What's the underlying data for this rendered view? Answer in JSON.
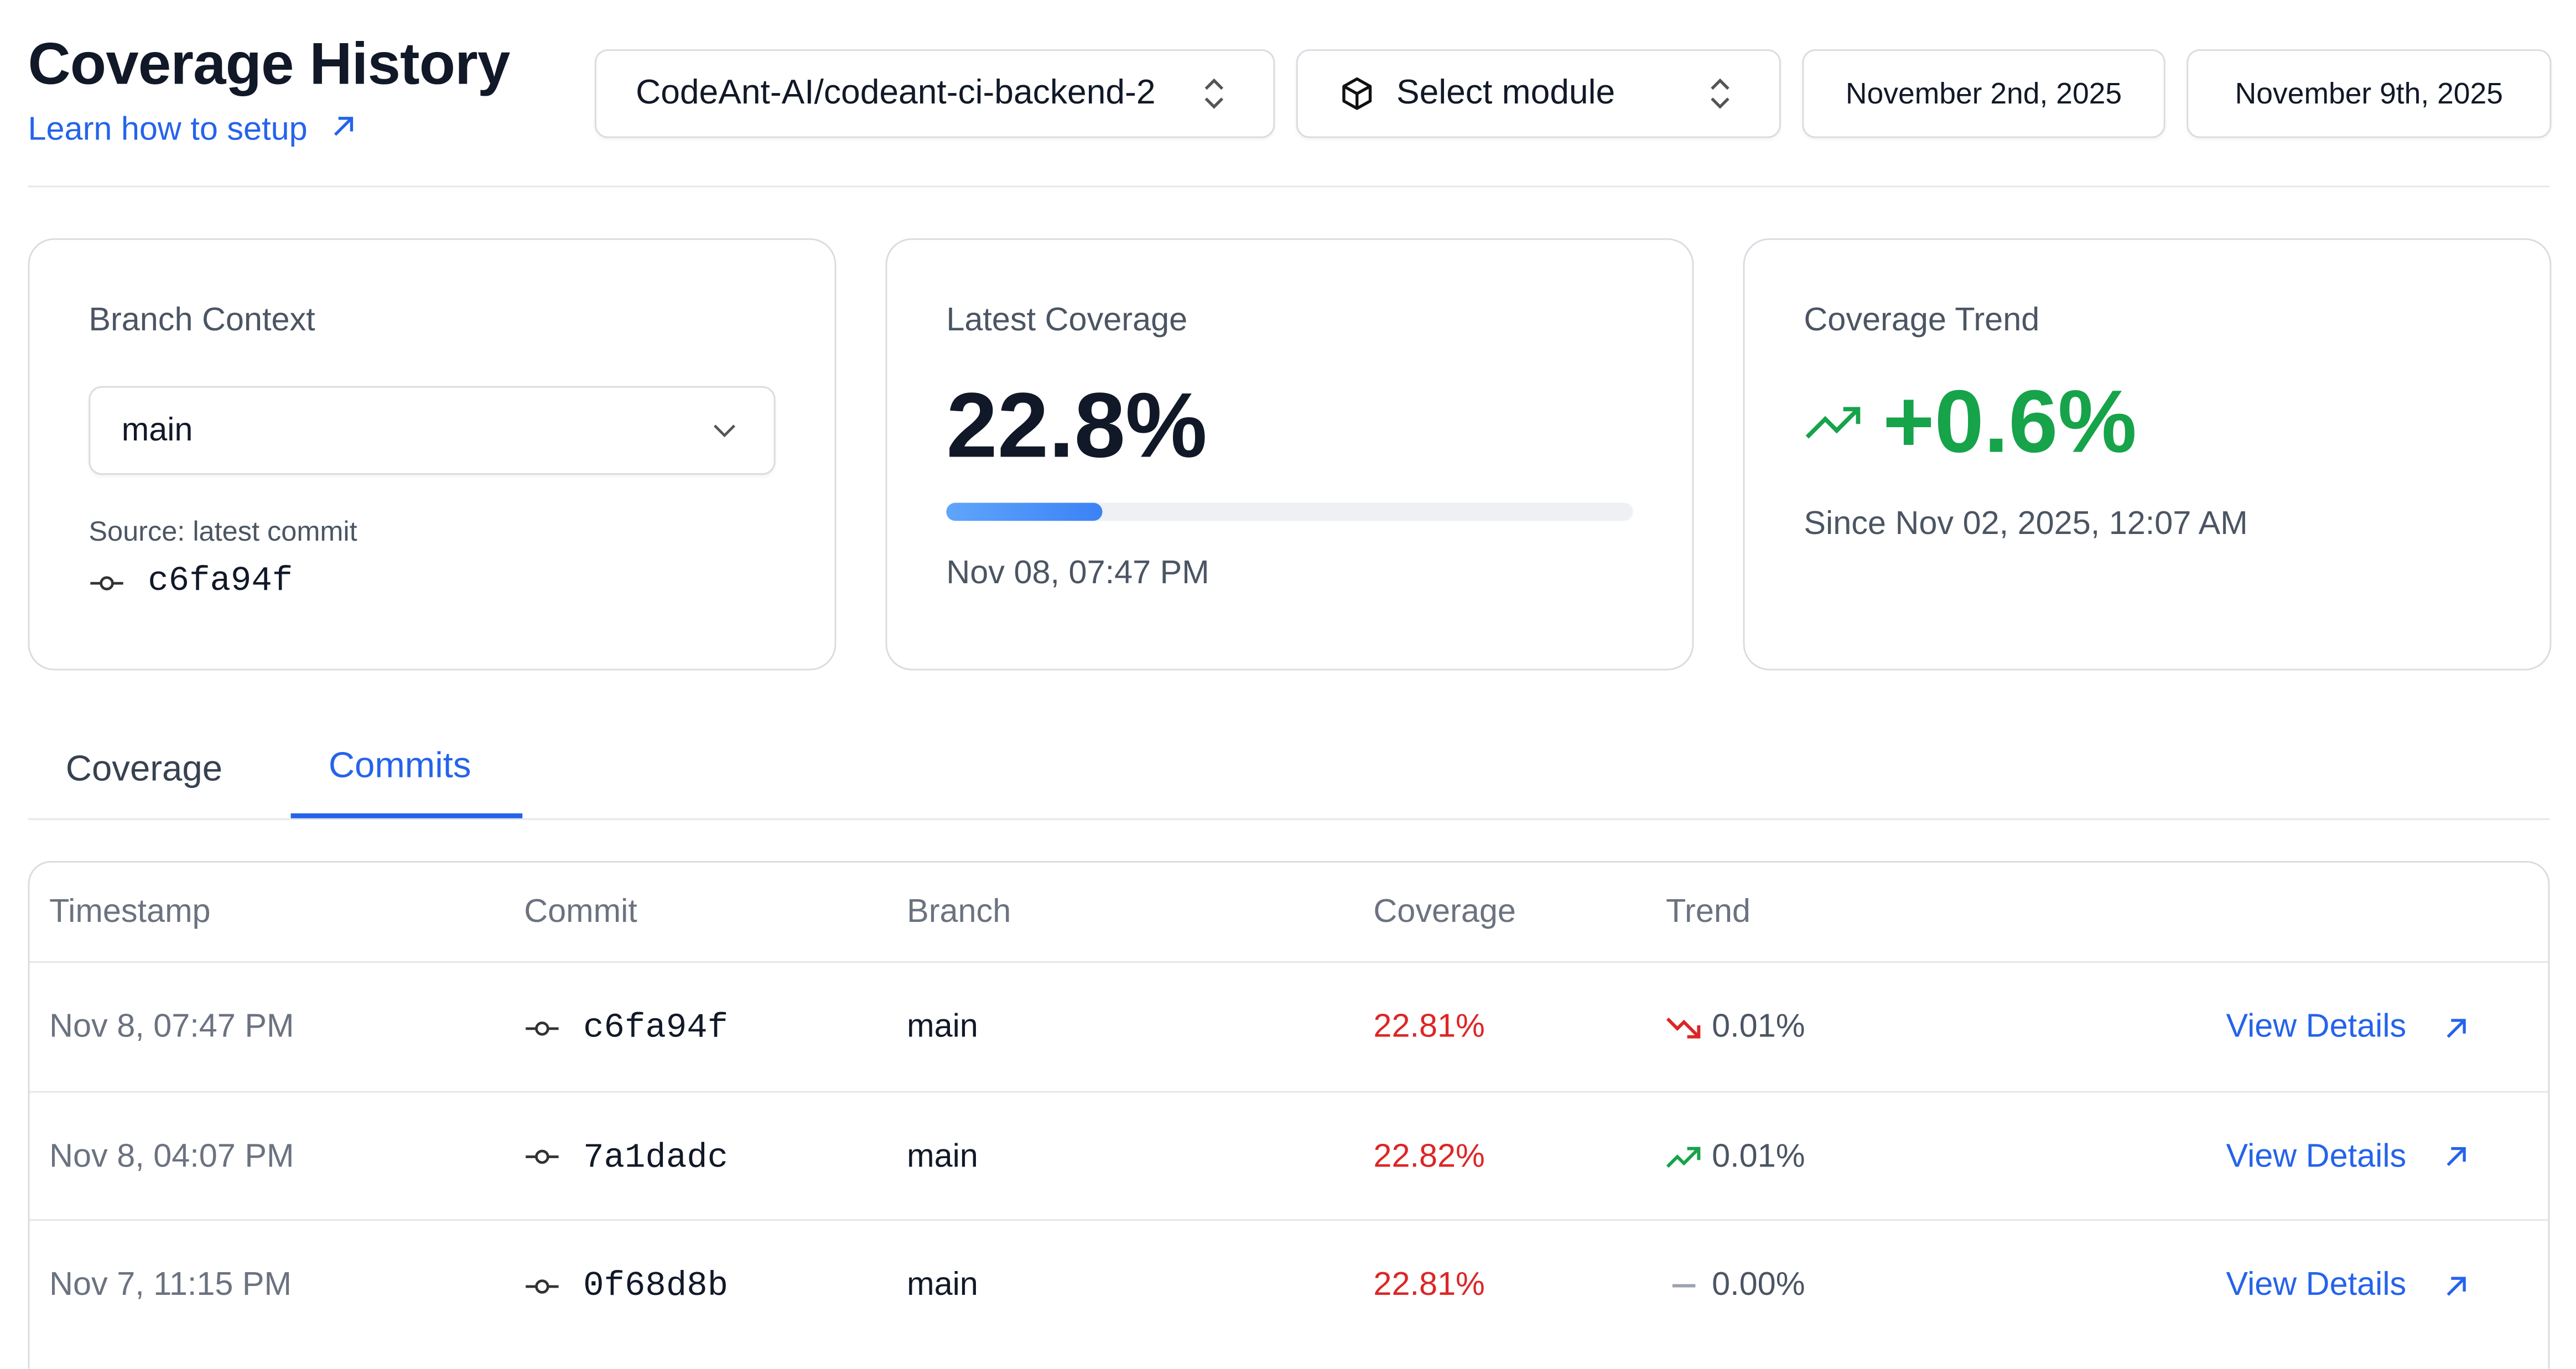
{
  "header": {
    "title": "Coverage History",
    "setup_link": "Learn how to setup",
    "repository": "CodeAnt-AI/codeant-ci-backend-2",
    "module": "Select module",
    "start_date": "November 2nd, 2025",
    "end_date": "November 9th, 2025"
  },
  "cards": {
    "branch": {
      "label": "Branch Context",
      "value": "main",
      "source": "Source: latest commit",
      "commit": "c6fa94f"
    },
    "latest": {
      "label": "Latest Coverage",
      "value": "22.8%",
      "time": "Nov 08, 07:47 PM"
    },
    "trend": {
      "label": "Coverage Trend",
      "value": "+0.6%",
      "since": "Since Nov 02, 2025, 12:07 AM"
    }
  },
  "tabs": [
    "Coverage",
    "Commits"
  ],
  "table": {
    "headers": [
      "Timestamp",
      "Commit",
      "Branch",
      "Coverage",
      "Trend"
    ],
    "rows": [
      {
        "timestamp": "Nov 8, 07:47 PM",
        "commit": "c6fa94f",
        "branch": "main",
        "coverage": "22.81%",
        "trend": "0.01%",
        "direction": "down",
        "action": "View Details"
      },
      {
        "timestamp": "Nov 8, 04:07 PM",
        "commit": "7a1dadc",
        "branch": "main",
        "coverage": "22.82%",
        "trend": "0.01%",
        "direction": "up",
        "action": "View Details"
      },
      {
        "timestamp": "Nov 7, 11:15 PM",
        "commit": "0f68d8b",
        "branch": "main",
        "coverage": "22.81%",
        "trend": "0.00%",
        "direction": "flat",
        "action": "View Details"
      }
    ]
  }
}
